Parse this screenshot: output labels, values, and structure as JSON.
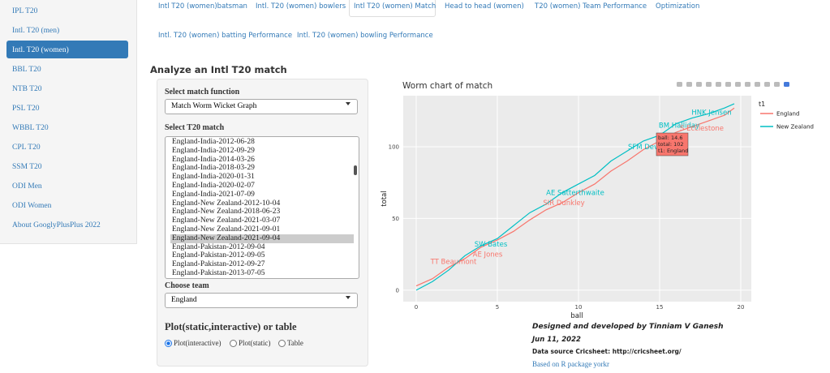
{
  "sidebar": {
    "items": [
      "IPL T20",
      "Intl. T20 (men)",
      "Intl. T20 (women)",
      "BBL T20",
      "NTB T20",
      "PSL T20",
      "WBBL T20",
      "CPL T20",
      "SSM T20",
      "ODI Men",
      "ODI Women",
      "About GooglyPlusPlus 2022"
    ],
    "active": 2
  },
  "tabs": {
    "row1": [
      "Intl T20 (women)batsman",
      "Intl. T20 (women) bowlers",
      "Intl T20 (women) Match",
      "Head to head (women)",
      "T20 (women) Team Performance",
      "Optimization"
    ],
    "row2": [
      "Intl. T20 (women) batting Performance",
      "Intl. T20 (women) bowling Performance"
    ],
    "active": 2
  },
  "heading": "Analyze an Intl T20 match",
  "form": {
    "match_function_label": "Select match function",
    "match_function": "Match Worm Wicket Graph",
    "match_label": "Select T20 match",
    "matches": [
      "England-India-2012-06-28",
      "England-India-2012-09-29",
      "England-India-2014-03-26",
      "England-India-2018-03-29",
      "England-India-2020-01-31",
      "England-India-2020-02-07",
      "England-India-2021-07-09",
      "England-New Zealand-2012-10-04",
      "England-New Zealand-2018-06-23",
      "England-New Zealand-2021-03-07",
      "England-New Zealand-2021-09-01",
      "England-New Zealand-2021-09-04",
      "England-Pakistan-2012-09-04",
      "England-Pakistan-2012-09-05",
      "England-Pakistan-2012-09-27",
      "England-Pakistan-2013-07-05"
    ],
    "selected_match": 11,
    "team_label": "Choose team",
    "team": "England",
    "output_label": "Plot(static,interactive) or table",
    "options": [
      "Plot(interactive)",
      "Plot(static)",
      "Table"
    ],
    "selected_option": 0
  },
  "worm_chart": {
    "type": "line",
    "title": "Worm chart of match",
    "x_label": "ball",
    "y_label": "total",
    "legend_title": "t1",
    "x": [
      0,
      1,
      2,
      3,
      4,
      5,
      6,
      7,
      8,
      9,
      10,
      11,
      12,
      13,
      14,
      15,
      16,
      17,
      18,
      19,
      19.6
    ],
    "series": [
      {
        "name": "England",
        "color": "#F8766D",
        "values": [
          3,
          8,
          16,
          22,
          30,
          35,
          41,
          49,
          56,
          61,
          68,
          74,
          83,
          90,
          98,
          104,
          110,
          114,
          118,
          122,
          127
        ]
      },
      {
        "name": "New Zealand",
        "color": "#00BFC4",
        "values": [
          0,
          6,
          14,
          24,
          31,
          36,
          45,
          54,
          60,
          68,
          74,
          80,
          90,
          97,
          104,
          108,
          116,
          120,
          123,
          127,
          130
        ]
      }
    ],
    "xlim": [
      -0.8,
      20.65
    ],
    "ylim": [
      -8,
      135.6
    ],
    "xticks": [
      0,
      5,
      10,
      15,
      20
    ],
    "yticks": [
      0,
      50,
      100
    ],
    "grid": true,
    "annotations": [
      {
        "series": 0,
        "x": 2.3,
        "y": 20,
        "text": "TT Beaumont"
      },
      {
        "series": 0,
        "x": 4.4,
        "y": 25,
        "text": "AE Jones"
      },
      {
        "series": 1,
        "x": 4.6,
        "y": 32,
        "text": "SW Bates"
      },
      {
        "series": 0,
        "x": 9.1,
        "y": 61,
        "text": "SIR Dunkley"
      },
      {
        "series": 1,
        "x": 9.8,
        "y": 68,
        "text": "AE Satterthwaite"
      },
      {
        "series": 1,
        "x": 14.3,
        "y": 100,
        "text": "SFM Devine"
      },
      {
        "series": 1,
        "x": 16.2,
        "y": 115,
        "text": "BM Halliday"
      },
      {
        "series": 0,
        "x": 17.6,
        "y": 113,
        "text": "S Ecclestone"
      },
      {
        "series": 1,
        "x": 18.2,
        "y": 124,
        "text": "HNK Jensen"
      }
    ],
    "tooltip": [
      "ball: 14.6",
      "total: 102",
      "t1: England"
    ]
  },
  "footer": {
    "credit": "Designed and developed by Tinniam V Ganesh",
    "date": "Jun 11, 2022",
    "source": "Data source Cricsheet: http://cricsheet.org/",
    "package": "Based on R package yorkr"
  }
}
